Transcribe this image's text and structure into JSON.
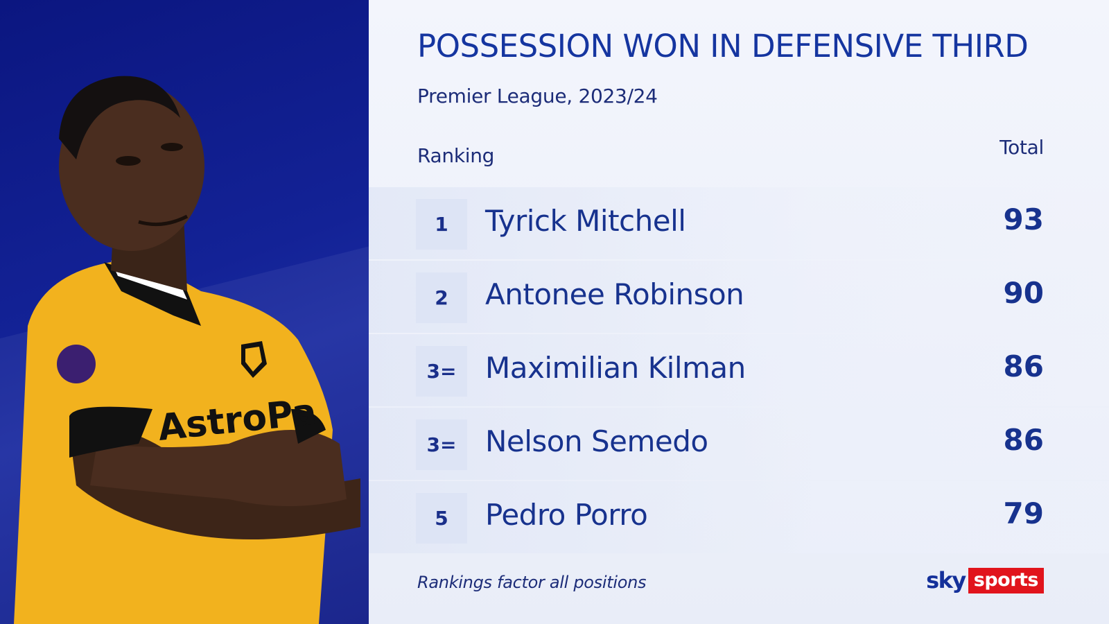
{
  "title": "POSSESSION WON IN DEFENSIVE THIRD",
  "subtitle": "Premier League, 2023/24",
  "columns": {
    "ranking": "Ranking",
    "total": "Total"
  },
  "footnote": "Rankings factor all positions",
  "logo": {
    "sky": "sky",
    "sports": "sports"
  },
  "colors": {
    "panel_blue": "#0b1680",
    "title_blue": "#1535a0",
    "sky_red": "#e1141c",
    "shirt_gold": "#f2b21e"
  },
  "chart_data": {
    "type": "table",
    "title": "POSSESSION WON IN DEFENSIVE THIRD",
    "subtitle": "Premier League, 2023/24",
    "columns": [
      "Ranking",
      "Total"
    ],
    "rows": [
      {
        "rank": "1",
        "name": "Tyrick Mitchell",
        "total": 93
      },
      {
        "rank": "2",
        "name": "Antonee Robinson",
        "total": 90
      },
      {
        "rank": "3=",
        "name": "Maximilian Kilman",
        "total": 86
      },
      {
        "rank": "3=",
        "name": "Nelson Semedo",
        "total": 86
      },
      {
        "rank": "5",
        "name": "Pedro Porro",
        "total": 79
      }
    ]
  }
}
